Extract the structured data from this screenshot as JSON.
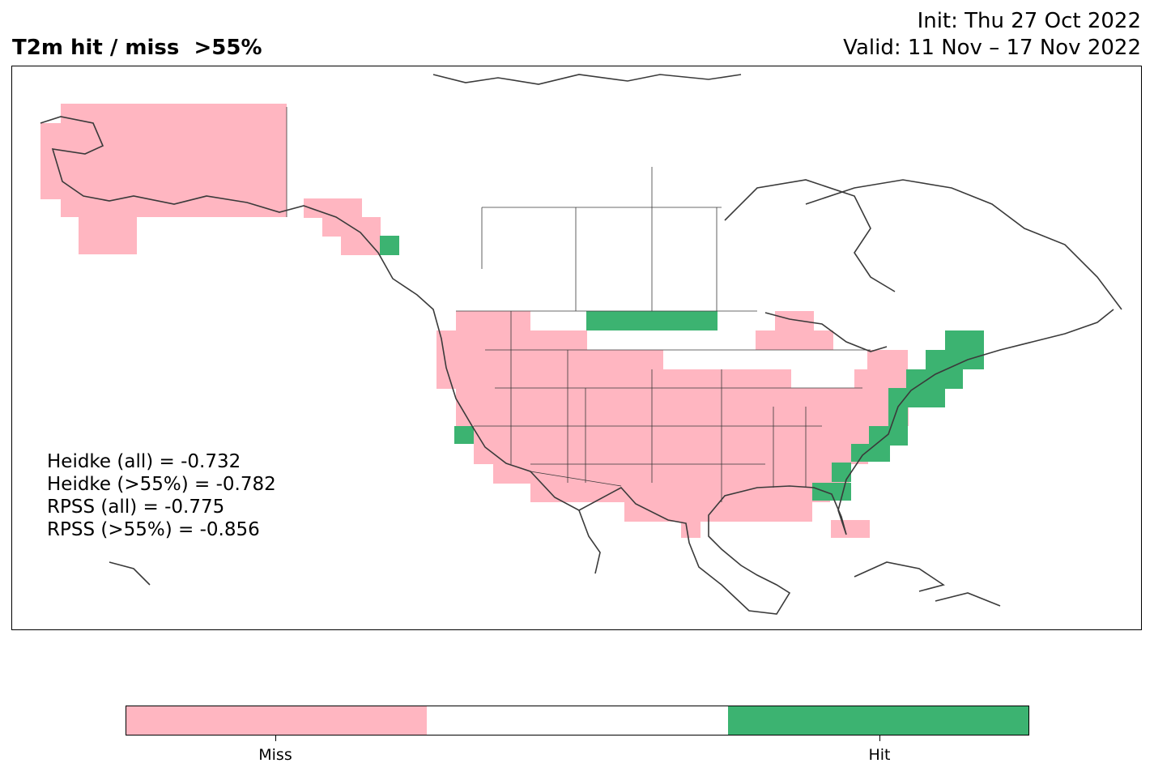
{
  "header": {
    "title": "T2m hit / miss  >55%",
    "init": "Init: Thu 27 Oct 2022",
    "valid": "Valid: 11 Nov – 17 Nov 2022"
  },
  "colors": {
    "miss": "#ffb6c1",
    "none": "#ffffff",
    "hit": "#3cb371",
    "coast": "#3a3a3a"
  },
  "scores": [
    "Heidke (all) = -0.732",
    "Heidke (>55%) = -0.782",
    "RPSS (all) = -0.775",
    "RPSS (>55%) = -0.856"
  ],
  "legend": {
    "miss_label": "Miss",
    "hit_label": "Hit"
  }
}
